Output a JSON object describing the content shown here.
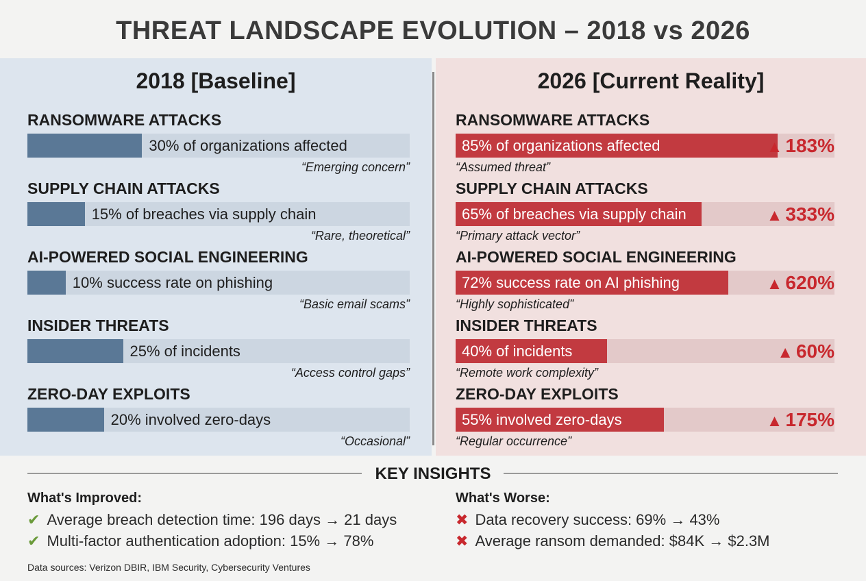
{
  "header": {
    "title": "THREAT LANDSCAPE EVOLUTION – 2018 vs 2026"
  },
  "panels": [
    {
      "heading": "2018 [Baseline]",
      "items": [
        {
          "label": "RANSOMWARE ATTACKS",
          "value": 30,
          "text": "30% of organizations affected",
          "note": "“Emerging concern”"
        },
        {
          "label": "SUPPLY CHAIN ATTACKS",
          "value": 15,
          "text": "15% of breaches via supply chain",
          "note": "“Rare, theoretical”"
        },
        {
          "label": "AI-POWERED SOCIAL ENGINEERING",
          "value": 10,
          "text": "10% success rate on phishing",
          "note": "“Basic email scams”"
        },
        {
          "label": "INSIDER THREATS",
          "value": 25,
          "text": "25% of incidents",
          "note": "“Access control gaps”"
        },
        {
          "label": "ZERO-DAY EXPLOITS",
          "value": 20,
          "text": "20% involved zero-days",
          "note": "“Occasional”"
        }
      ]
    },
    {
      "heading": "2026 [Current Reality]",
      "items": [
        {
          "label": "RANSOMWARE ATTACKS",
          "value": 85,
          "text": "85% of organizations affected",
          "note": "“Assumed threat”",
          "change": "183%"
        },
        {
          "label": "SUPPLY CHAIN ATTACKS",
          "value": 65,
          "text": "65% of breaches via supply chain",
          "note": "“Primary attack vector”",
          "change": "333%"
        },
        {
          "label": "AI-POWERED SOCIAL ENGINEERING",
          "value": 72,
          "text": "72% success rate on AI phishing",
          "note": "“Highly sophisticated”",
          "change": "620%"
        },
        {
          "label": "INSIDER THREATS",
          "value": 40,
          "text": "40% of incidents",
          "note": "“Remote work complexity”",
          "change": "60%"
        },
        {
          "label": "ZERO-DAY EXPLOITS",
          "value": 55,
          "text": "55% involved zero-days",
          "note": "“Regular occurrence”",
          "change": "175%"
        }
      ]
    }
  ],
  "insights": {
    "heading": "KEY INSIGHTS",
    "improved": {
      "heading": "What's Improved:",
      "items": [
        "Average breach detection time: 196 days → 21 days",
        "Multi-factor authentication adoption: 15% → 78%"
      ]
    },
    "worse": {
      "heading": "What's Worse:",
      "items": [
        "Data recovery success: 69% → 43%",
        "Average ransom demanded: $84K → $2.3M"
      ]
    }
  },
  "footer": "Data sources: Verizon DBIR, IBM Security, Cybersecurity Ventures"
}
